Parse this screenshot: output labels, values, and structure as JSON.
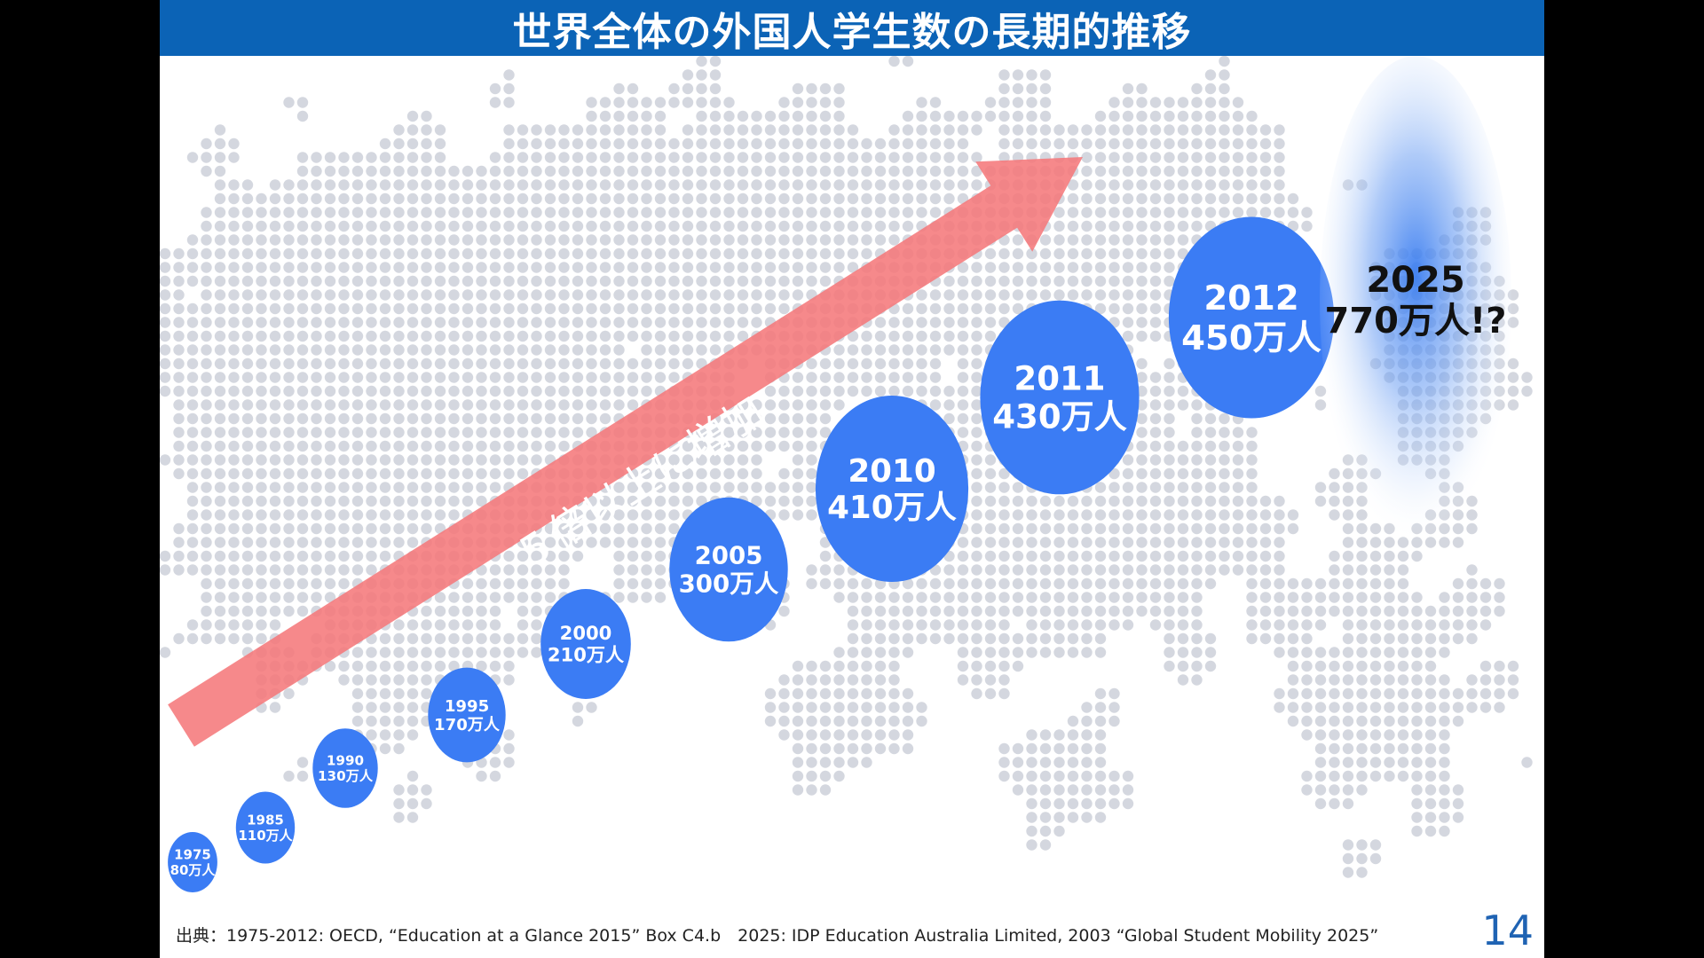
{
  "slide": {
    "title": "世界全体の外国人学生数の長期的推移",
    "arrow_label": "５倍以上に増加",
    "source": "出典：1975-2012: OECD, “Education at a Glance 2015” Box C4.b　2025: IDP Education Australia Limited, 2003 “Global Student Mobility 2025”",
    "page_number": "14"
  },
  "colors": {
    "title_bar": "#0b63b6",
    "bubble": "#3b7cf4",
    "arrow": "#f5797b",
    "map_dots": "#d4d7df",
    "projection_glow": "#3a7df0",
    "page_number": "#1f63b3"
  },
  "chart_data": {
    "type": "bubble",
    "title": "世界全体の外国人学生数の長期的推移",
    "unit": "万人",
    "categories": [
      "1975",
      "1985",
      "1990",
      "1995",
      "2000",
      "2005",
      "2010",
      "2011",
      "2012",
      "2025"
    ],
    "values": [
      80,
      110,
      130,
      170,
      210,
      300,
      410,
      430,
      450,
      770
    ],
    "labels": [
      {
        "year": "1975",
        "value": "80万人"
      },
      {
        "year": "1985",
        "value": "110万人"
      },
      {
        "year": "1990",
        "value": "130万人"
      },
      {
        "year": "1995",
        "value": "170万人"
      },
      {
        "year": "2000",
        "value": "210万人"
      },
      {
        "year": "2005",
        "value": "300万人"
      },
      {
        "year": "2010",
        "value": "410万人"
      },
      {
        "year": "2011",
        "value": "430万人"
      },
      {
        "year": "2012",
        "value": "450万人"
      },
      {
        "year": "2025",
        "value": "770万人!?",
        "projected": true
      }
    ]
  }
}
